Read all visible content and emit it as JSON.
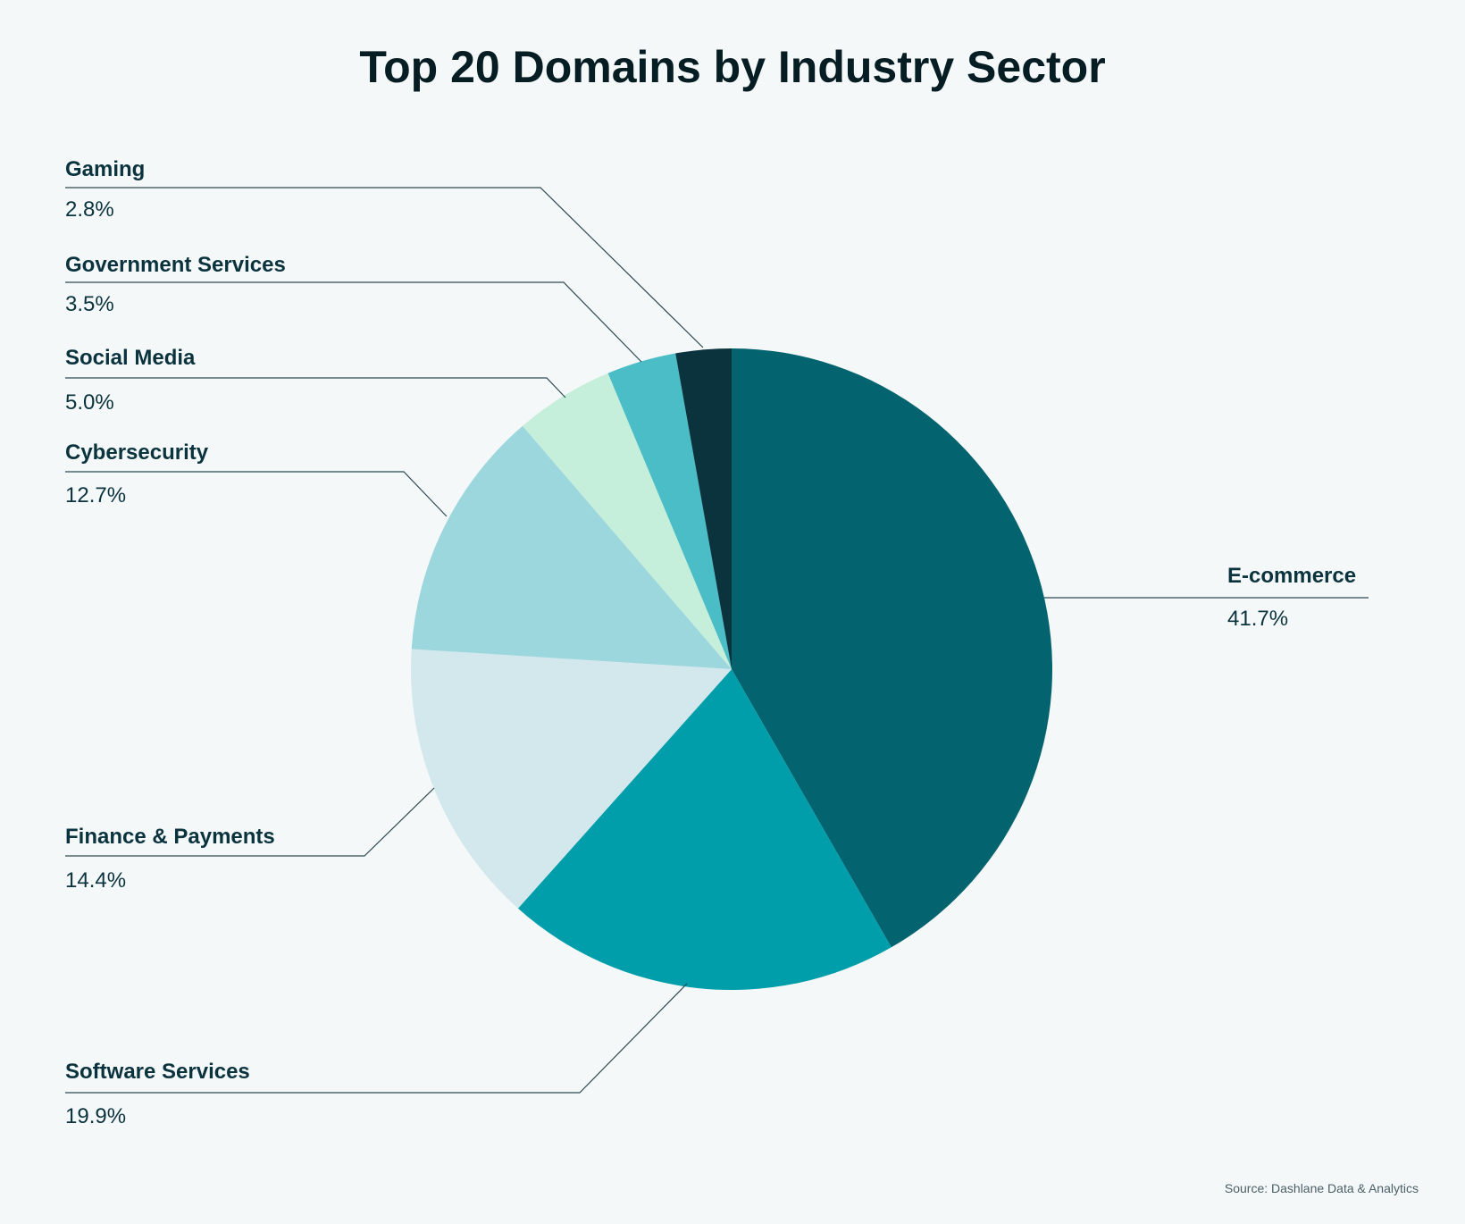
{
  "chart_data": {
    "type": "pie",
    "title": "Top 20 Domains by Industry Sector",
    "source": "Source: Dashlane Data & Analytics",
    "start_angle": "12 o'clock",
    "direction": "clockwise",
    "slices": [
      {
        "label": "E-commerce",
        "value": 41.7,
        "pct_label": "41.7%",
        "color": "#03636f"
      },
      {
        "label": "Software Services",
        "value": 19.9,
        "pct_label": "19.9%",
        "color": "#009eaa"
      },
      {
        "label": "Finance & Payments",
        "value": 14.4,
        "pct_label": "14.4%",
        "color": "#d3e8ec"
      },
      {
        "label": "Cybersecurity",
        "value": 12.7,
        "pct_label": "12.7%",
        "color": "#9dd7de"
      },
      {
        "label": "Social Media",
        "value": 5.0,
        "pct_label": "5.0%",
        "color": "#c5eedb"
      },
      {
        "label": "Government Services",
        "value": 3.5,
        "pct_label": "3.5%",
        "color": "#4abdc6"
      },
      {
        "label": "Gaming",
        "value": 2.8,
        "pct_label": "2.8%",
        "color": "#0b333e"
      }
    ]
  }
}
